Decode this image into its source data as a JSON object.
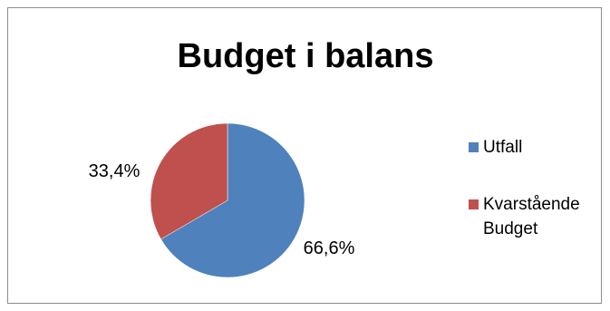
{
  "chart_data": {
    "type": "pie",
    "title": "Budget i balans",
    "categories": [
      "Utfall",
      "Kvarstående Budget"
    ],
    "values": [
      66.6,
      33.4
    ],
    "data_labels": [
      "66,6%",
      "33,4%"
    ],
    "colors": [
      "#4f81bd",
      "#c0504d"
    ],
    "legend_position": "right",
    "legend_labels": [
      "Utfall",
      "Kvarstående\nBudget"
    ],
    "start_angle_deg": 0,
    "direction": "clockwise"
  }
}
